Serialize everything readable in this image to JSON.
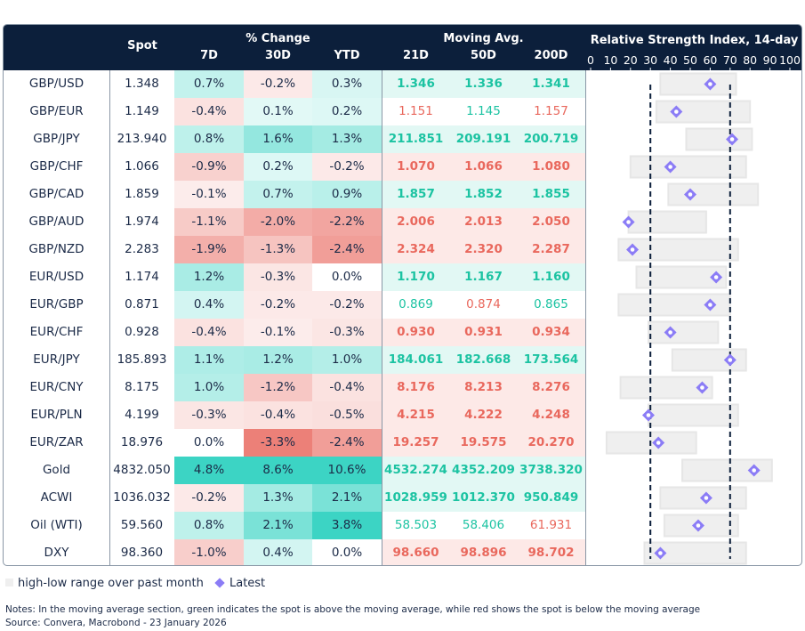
{
  "header": {
    "spot": "Spot",
    "pct_change": "% Change",
    "d7": "7D",
    "d30": "30D",
    "ytd": "YTD",
    "moving_avg": "Moving Avg.",
    "ma21": "21D",
    "ma50": "50D",
    "ma200": "200D",
    "rsi_title": "Relative Strength Index, 14-day"
  },
  "colors": {
    "header_bg": "#0c1f3b",
    "green": "#1cc3a2",
    "red": "#e9685d",
    "range_bar": "#efefef",
    "latest_marker": "#8b7cf6",
    "threshold_line": "#0c1f3b"
  },
  "chart_data": {
    "type": "range-dot",
    "title": "Relative Strength Index, 14-day",
    "xlim": [
      0,
      100
    ],
    "xticks": [
      "0",
      "10",
      "20",
      "30",
      "40",
      "50",
      "60",
      "70",
      "80",
      "90",
      "100"
    ],
    "reference_lines": [
      30,
      70
    ],
    "series": [
      {
        "name": "high-low range over past month"
      },
      {
        "name": "Latest"
      }
    ],
    "legend_placement": "bottom-left"
  },
  "rows": [
    {
      "name": "GBP/USD",
      "spot": "1.348",
      "d7": "0.7%",
      "d30": "-0.2%",
      "ytd": "0.3%",
      "ma21": "1.346",
      "ma50": "1.336",
      "ma200": "1.341",
      "rsi_low": 35,
      "rsi_high": 73,
      "rsi_latest": 60
    },
    {
      "name": "GBP/EUR",
      "spot": "1.149",
      "d7": "-0.4%",
      "d30": "0.1%",
      "ytd": "0.2%",
      "ma21": "1.151",
      "ma50": "1.145",
      "ma200": "1.157",
      "rsi_low": 33,
      "rsi_high": 80,
      "rsi_latest": 43
    },
    {
      "name": "GBP/JPY",
      "spot": "213.940",
      "d7": "0.8%",
      "d30": "1.6%",
      "ytd": "1.3%",
      "ma21": "211.851",
      "ma50": "209.191",
      "ma200": "200.719",
      "rsi_low": 48,
      "rsi_high": 81,
      "rsi_latest": 71
    },
    {
      "name": "GBP/CHF",
      "spot": "1.066",
      "d7": "-0.9%",
      "d30": "0.2%",
      "ytd": "-0.2%",
      "ma21": "1.070",
      "ma50": "1.066",
      "ma200": "1.080",
      "rsi_low": 20,
      "rsi_high": 78,
      "rsi_latest": 40
    },
    {
      "name": "GBP/CAD",
      "spot": "1.859",
      "d7": "-0.1%",
      "d30": "0.7%",
      "ytd": "0.9%",
      "ma21": "1.857",
      "ma50": "1.852",
      "ma200": "1.855",
      "rsi_low": 39,
      "rsi_high": 84,
      "rsi_latest": 50
    },
    {
      "name": "GBP/AUD",
      "spot": "1.974",
      "d7": "-1.1%",
      "d30": "-2.0%",
      "ytd": "-2.2%",
      "ma21": "2.006",
      "ma50": "2.013",
      "ma200": "2.050",
      "rsi_low": 19,
      "rsi_high": 58,
      "rsi_latest": 19
    },
    {
      "name": "GBP/NZD",
      "spot": "2.283",
      "d7": "-1.9%",
      "d30": "-1.3%",
      "ytd": "-2.4%",
      "ma21": "2.324",
      "ma50": "2.320",
      "ma200": "2.287",
      "rsi_low": 14,
      "rsi_high": 74,
      "rsi_latest": 21
    },
    {
      "name": "EUR/USD",
      "spot": "1.174",
      "d7": "1.2%",
      "d30": "-0.3%",
      "ytd": "0.0%",
      "ma21": "1.170",
      "ma50": "1.167",
      "ma200": "1.160",
      "rsi_low": 23,
      "rsi_high": 68,
      "rsi_latest": 63
    },
    {
      "name": "EUR/GBP",
      "spot": "0.871",
      "d7": "0.4%",
      "d30": "-0.2%",
      "ytd": "-0.2%",
      "ma21": "0.869",
      "ma50": "0.874",
      "ma200": "0.865",
      "rsi_low": 14,
      "rsi_high": 70,
      "rsi_latest": 60
    },
    {
      "name": "EUR/CHF",
      "spot": "0.928",
      "d7": "-0.4%",
      "d30": "-0.1%",
      "ytd": "-0.3%",
      "ma21": "0.930",
      "ma50": "0.931",
      "ma200": "0.934",
      "rsi_low": 29,
      "rsi_high": 64,
      "rsi_latest": 40
    },
    {
      "name": "EUR/JPY",
      "spot": "185.893",
      "d7": "1.1%",
      "d30": "1.2%",
      "ytd": "1.0%",
      "ma21": "184.061",
      "ma50": "182.668",
      "ma200": "173.564",
      "rsi_low": 41,
      "rsi_high": 78,
      "rsi_latest": 70
    },
    {
      "name": "EUR/CNY",
      "spot": "8.175",
      "d7": "1.0%",
      "d30": "-1.2%",
      "ytd": "-0.4%",
      "ma21": "8.176",
      "ma50": "8.213",
      "ma200": "8.276",
      "rsi_low": 15,
      "rsi_high": 61,
      "rsi_latest": 56
    },
    {
      "name": "EUR/PLN",
      "spot": "4.199",
      "d7": "-0.3%",
      "d30": "-0.4%",
      "ytd": "-0.5%",
      "ma21": "4.215",
      "ma50": "4.222",
      "ma200": "4.248",
      "rsi_low": 29,
      "rsi_high": 74,
      "rsi_latest": 29
    },
    {
      "name": "EUR/ZAR",
      "spot": "18.976",
      "d7": "0.0%",
      "d30": "-3.3%",
      "ytd": "-2.4%",
      "ma21": "19.257",
      "ma50": "19.575",
      "ma200": "20.270",
      "rsi_low": 8,
      "rsi_high": 53,
      "rsi_latest": 34
    },
    {
      "name": "Gold",
      "spot": "4832.050",
      "d7": "4.8%",
      "d30": "8.6%",
      "ytd": "10.6%",
      "ma21": "4532.274",
      "ma50": "4352.209",
      "ma200": "3738.320",
      "rsi_low": 46,
      "rsi_high": 91,
      "rsi_latest": 82
    },
    {
      "name": "ACWI",
      "spot": "1036.032",
      "d7": "-0.2%",
      "d30": "1.3%",
      "ytd": "2.1%",
      "ma21": "1028.959",
      "ma50": "1012.370",
      "ma200": "950.849",
      "rsi_low": 35,
      "rsi_high": 78,
      "rsi_latest": 58
    },
    {
      "name": "Oil (WTI)",
      "spot": "59.560",
      "d7": "0.8%",
      "d30": "2.1%",
      "ytd": "3.8%",
      "ma21": "58.503",
      "ma50": "58.406",
      "ma200": "61.931",
      "rsi_low": 37,
      "rsi_high": 74,
      "rsi_latest": 54
    },
    {
      "name": "DXY",
      "spot": "98.360",
      "d7": "-1.0%",
      "d30": "0.4%",
      "ytd": "0.0%",
      "ma21": "98.660",
      "ma50": "98.896",
      "ma200": "98.702",
      "rsi_low": 27,
      "rsi_high": 78,
      "rsi_latest": 35
    }
  ],
  "legend": {
    "range": "high-low range over past month",
    "latest": "Latest"
  },
  "notes": "Notes: In the moving average section, green indicates the spot is above the moving average, while red shows the spot is below the moving average",
  "source": "Source: Convera, Macrobond - 23 January 2026"
}
